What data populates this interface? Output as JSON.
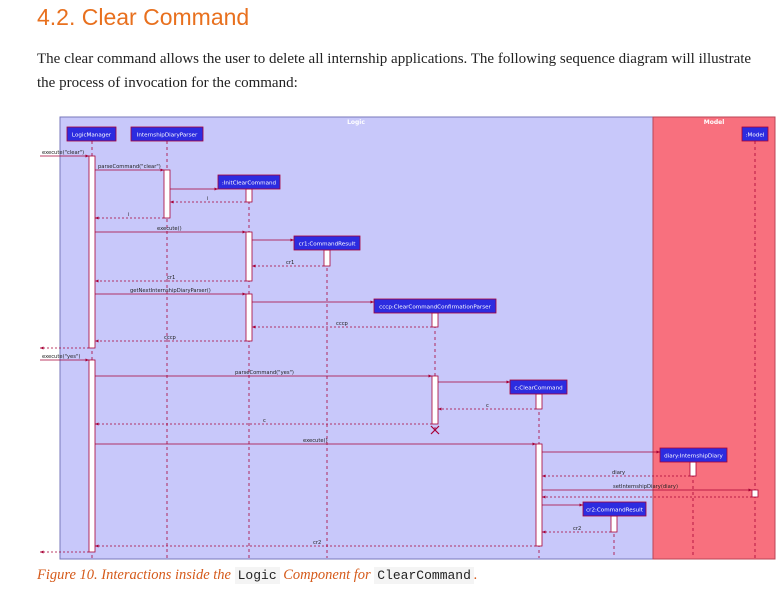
{
  "heading": "4.2. Clear Command",
  "intro": "The clear command allows the user to delete all internship applications. The following sequence diagram will illustrate the process of invocation for the command:",
  "diagram": {
    "frames": {
      "logic": "Logic",
      "model": "Model"
    },
    "participants": {
      "logic_manager": "LogicManager",
      "parser": "InternshipDiaryParser",
      "model": ":Model",
      "clear_parser": ":InitClearCommand",
      "cr1": "cr1:CommandResult",
      "cccp": "cccp:ClearCommandConfirmationParser",
      "clear_command": "c:ClearCommand",
      "diary": "diary:InternshipDiary",
      "cr2": "cr2:CommandResult"
    },
    "messages": {
      "m1": "execute(\"clear\")",
      "m2": "parseCommand(\"clear\")",
      "m3": "i",
      "m4": "i",
      "m5": "execute()",
      "m6": "cr1",
      "m7": "cr1",
      "m8": "getNextInternshipDiaryParser()",
      "m9": "cccp",
      "m10": "cccp",
      "m11": "execute(\"yes\")",
      "m12": "parseCommand(\"yes\")",
      "m13": "c",
      "m14": "c",
      "m15": "execute()",
      "m16": "diary",
      "m17": "setInternshipDiary(diary)",
      "m18": "cr2",
      "m19": "cr2"
    }
  },
  "caption": {
    "prefix": "Figure 10. Interactions inside the",
    "code1": "Logic",
    "middle": "Component for",
    "code2": "ClearCommand",
    "suffix": "."
  }
}
